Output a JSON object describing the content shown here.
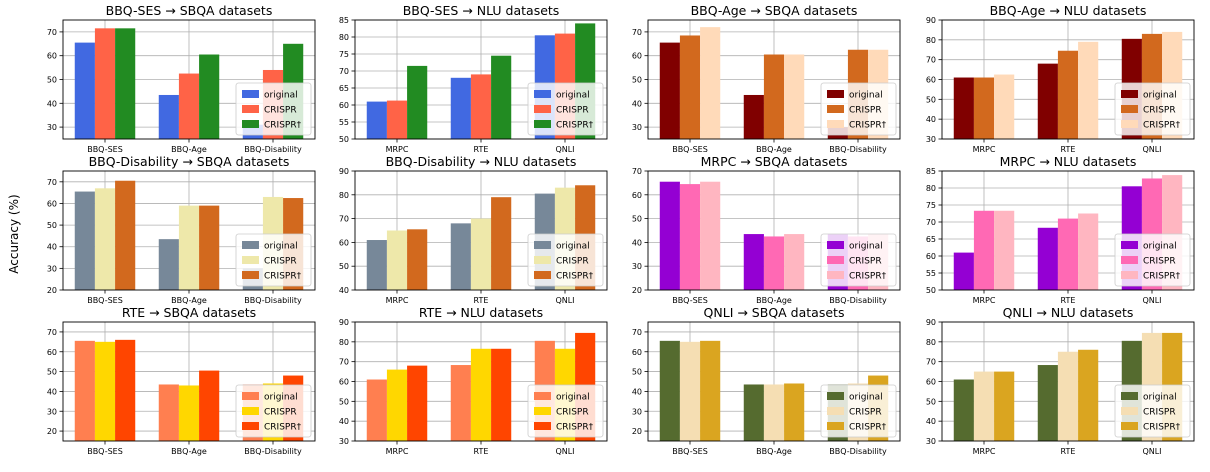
{
  "figure": {
    "ylabel": "Accuracy (%)"
  },
  "chart_data": [
    {
      "type": "bar",
      "title": "BBQ-SES → SBQA datasets",
      "categories": [
        "BBQ-SES",
        "BBQ-Age",
        "BBQ-Disability"
      ],
      "series": [
        {
          "name": "original",
          "color": "#4169e1",
          "values": [
            65.5,
            43.5,
            31
          ]
        },
        {
          "name": "CRISPR",
          "color": "#ff6347",
          "values": [
            71.5,
            52.5,
            54
          ]
        },
        {
          "name": "CRISPR†",
          "color": "#228b22",
          "values": [
            71.5,
            60.5,
            65
          ]
        }
      ],
      "ylim": [
        25,
        75
      ],
      "yticks": [
        30,
        40,
        50,
        60,
        70
      ],
      "legend": "lower-right",
      "grid": true
    },
    {
      "type": "bar",
      "title": "BBQ-SES → NLU datasets",
      "categories": [
        "MRPC",
        "RTE",
        "QNLI"
      ],
      "series": [
        {
          "name": "original",
          "color": "#4169e1",
          "values": [
            61,
            68,
            80.5
          ]
        },
        {
          "name": "CRISPR",
          "color": "#ff6347",
          "values": [
            61.3,
            69,
            81
          ]
        },
        {
          "name": "CRISPR†",
          "color": "#228b22",
          "values": [
            71.5,
            74.5,
            84
          ]
        }
      ],
      "ylim": [
        50,
        85
      ],
      "yticks": [
        50,
        55,
        60,
        65,
        70,
        75,
        80,
        85
      ],
      "legend": "lower-right",
      "grid": true
    },
    {
      "type": "bar",
      "title": "BBQ-Age → SBQA datasets",
      "categories": [
        "BBQ-SES",
        "BBQ-Age",
        "BBQ-Disability"
      ],
      "series": [
        {
          "name": "original",
          "color": "#800000",
          "values": [
            65.5,
            43.5,
            30
          ]
        },
        {
          "name": "CRISPR",
          "color": "#d2691e",
          "values": [
            68.5,
            60.5,
            62.5
          ]
        },
        {
          "name": "CRISPR†",
          "color": "#ffdab9",
          "values": [
            72,
            60.5,
            62.5
          ]
        }
      ],
      "ylim": [
        25,
        75
      ],
      "yticks": [
        30,
        40,
        50,
        60,
        70
      ],
      "legend": "lower-right",
      "grid": true
    },
    {
      "type": "bar",
      "title": "BBQ-Age → NLU datasets",
      "categories": [
        "MRPC",
        "RTE",
        "QNLI"
      ],
      "series": [
        {
          "name": "original",
          "color": "#800000",
          "values": [
            61,
            68,
            80.5
          ]
        },
        {
          "name": "CRISPR",
          "color": "#d2691e",
          "values": [
            61,
            74.5,
            83
          ]
        },
        {
          "name": "CRISPR†",
          "color": "#ffdab9",
          "values": [
            62.5,
            79,
            84
          ]
        }
      ],
      "ylim": [
        30,
        90
      ],
      "yticks": [
        30,
        40,
        50,
        60,
        70,
        80,
        90
      ],
      "legend": "lower-right",
      "grid": true
    },
    {
      "type": "bar",
      "title": "BBQ-Disability → SBQA datasets",
      "categories": [
        "BBQ-SES",
        "BBQ-Age",
        "BBQ-Disability"
      ],
      "series": [
        {
          "name": "original",
          "color": "#778899",
          "values": [
            65.5,
            43.5,
            30
          ]
        },
        {
          "name": "CRISPR",
          "color": "#eee8aa",
          "values": [
            67,
            59,
            63
          ]
        },
        {
          "name": "CRISPR†",
          "color": "#d2691e",
          "values": [
            70.5,
            59,
            62.5
          ]
        }
      ],
      "ylim": [
        20,
        75
      ],
      "yticks": [
        20,
        30,
        40,
        50,
        60,
        70
      ],
      "legend": "lower-right",
      "grid": true
    },
    {
      "type": "bar",
      "title": "BBQ-Disability → NLU datasets",
      "categories": [
        "MRPC",
        "RTE",
        "QNLI"
      ],
      "series": [
        {
          "name": "original",
          "color": "#778899",
          "values": [
            61,
            68,
            80.5
          ]
        },
        {
          "name": "CRISPR",
          "color": "#eee8aa",
          "values": [
            65,
            70,
            83
          ]
        },
        {
          "name": "CRISPR†",
          "color": "#d2691e",
          "values": [
            65.5,
            79,
            84
          ]
        }
      ],
      "ylim": [
        40,
        90
      ],
      "yticks": [
        40,
        50,
        60,
        70,
        80,
        90
      ],
      "legend": "lower-right",
      "grid": true
    },
    {
      "type": "bar",
      "title": "MRPC → SBQA datasets",
      "categories": [
        "BBQ-SES",
        "BBQ-Age",
        "BBQ-Disability"
      ],
      "series": [
        {
          "name": "original",
          "color": "#9400d3",
          "values": [
            65.5,
            43.5,
            43.5
          ]
        },
        {
          "name": "CRISPR",
          "color": "#ff69b4",
          "values": [
            64.5,
            42.5,
            42.5
          ]
        },
        {
          "name": "CRISPR†",
          "color": "#ffb6c1",
          "values": [
            65.5,
            43.5,
            43.5
          ]
        }
      ],
      "ylim": [
        20,
        70
      ],
      "yticks": [
        20,
        30,
        40,
        50,
        60,
        70
      ],
      "legend": "lower-right",
      "grid": true
    },
    {
      "type": "bar",
      "title": "MRPC → NLU datasets",
      "categories": [
        "MRPC",
        "RTE",
        "QNLI"
      ],
      "series": [
        {
          "name": "original",
          "color": "#9400d3",
          "values": [
            61,
            68.3,
            80.5
          ]
        },
        {
          "name": "CRISPR",
          "color": "#ff69b4",
          "values": [
            73.3,
            71,
            82.8
          ]
        },
        {
          "name": "CRISPR†",
          "color": "#ffb6c1",
          "values": [
            73.3,
            72.5,
            83.8
          ]
        }
      ],
      "ylim": [
        50,
        85
      ],
      "yticks": [
        50,
        55,
        60,
        65,
        70,
        75,
        80,
        85
      ],
      "legend": "lower-right",
      "grid": true
    },
    {
      "type": "bar",
      "title": "RTE → SBQA datasets",
      "categories": [
        "BBQ-SES",
        "BBQ-Age",
        "BBQ-Disability"
      ],
      "series": [
        {
          "name": "original",
          "color": "#ff7f50",
          "values": [
            65.5,
            43.5,
            43.5
          ]
        },
        {
          "name": "CRISPR",
          "color": "#ffd700",
          "values": [
            65,
            43,
            44
          ]
        },
        {
          "name": "CRISPR†",
          "color": "#ff4500",
          "values": [
            66,
            50.5,
            48
          ]
        }
      ],
      "ylim": [
        15,
        75
      ],
      "yticks": [
        20,
        30,
        40,
        50,
        60,
        70
      ],
      "legend": "lower-right",
      "grid": true
    },
    {
      "type": "bar",
      "title": "RTE → NLU datasets",
      "categories": [
        "MRPC",
        "RTE",
        "QNLI"
      ],
      "series": [
        {
          "name": "original",
          "color": "#ff7f50",
          "values": [
            61,
            68.3,
            80.5
          ]
        },
        {
          "name": "CRISPR",
          "color": "#ffd700",
          "values": [
            66,
            76.5,
            76.5
          ]
        },
        {
          "name": "CRISPR†",
          "color": "#ff4500",
          "values": [
            68,
            76.5,
            84.5
          ]
        }
      ],
      "ylim": [
        30,
        90
      ],
      "yticks": [
        30,
        40,
        50,
        60,
        70,
        80,
        90
      ],
      "legend": "lower-right",
      "grid": true
    },
    {
      "type": "bar",
      "title": "QNLI → SBQA datasets",
      "categories": [
        "BBQ-SES",
        "BBQ-Age",
        "BBQ-Disability"
      ],
      "series": [
        {
          "name": "original",
          "color": "#556b2f",
          "values": [
            65.5,
            43.5,
            43.5
          ]
        },
        {
          "name": "CRISPR",
          "color": "#f5deb3",
          "values": [
            65,
            43.5,
            44
          ]
        },
        {
          "name": "CRISPR†",
          "color": "#daa520",
          "values": [
            65.5,
            44,
            48
          ]
        }
      ],
      "ylim": [
        15,
        75
      ],
      "yticks": [
        20,
        30,
        40,
        50,
        60,
        70
      ],
      "legend": "lower-right",
      "grid": true
    },
    {
      "type": "bar",
      "title": "QNLI → NLU datasets",
      "categories": [
        "MRPC",
        "RTE",
        "QNLI"
      ],
      "series": [
        {
          "name": "original",
          "color": "#556b2f",
          "values": [
            61,
            68.3,
            80.5
          ]
        },
        {
          "name": "CRISPR",
          "color": "#f5deb3",
          "values": [
            65,
            75,
            84.5
          ]
        },
        {
          "name": "CRISPR†",
          "color": "#daa520",
          "values": [
            65,
            76,
            84.5
          ]
        }
      ],
      "ylim": [
        30,
        90
      ],
      "yticks": [
        30,
        40,
        50,
        60,
        70,
        80,
        90
      ],
      "legend": "lower-right",
      "grid": true
    }
  ]
}
